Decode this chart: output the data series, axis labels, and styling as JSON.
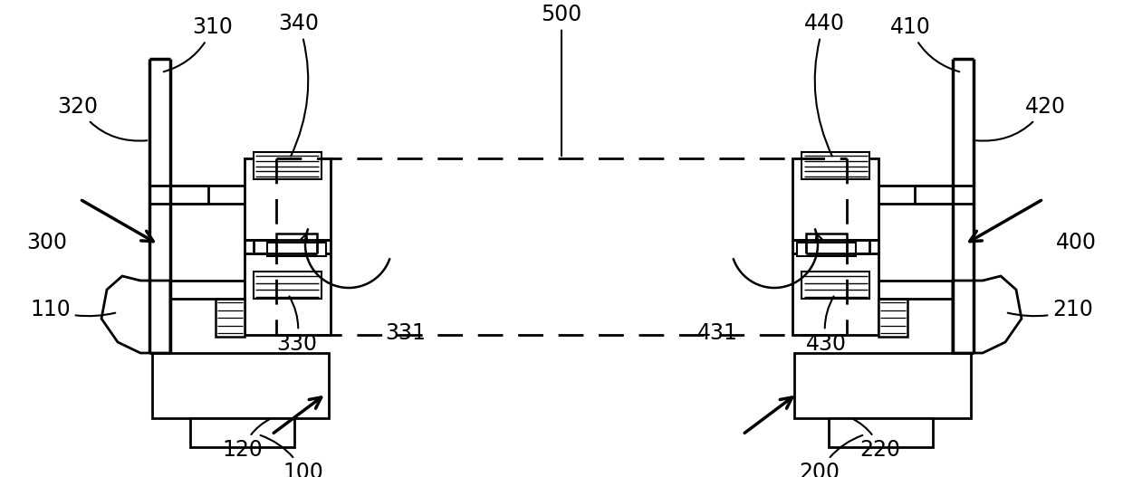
{
  "bg_color": "#ffffff",
  "line_color": "#000000",
  "fig_width": 12.4,
  "fig_height": 5.27,
  "dpi": 100
}
